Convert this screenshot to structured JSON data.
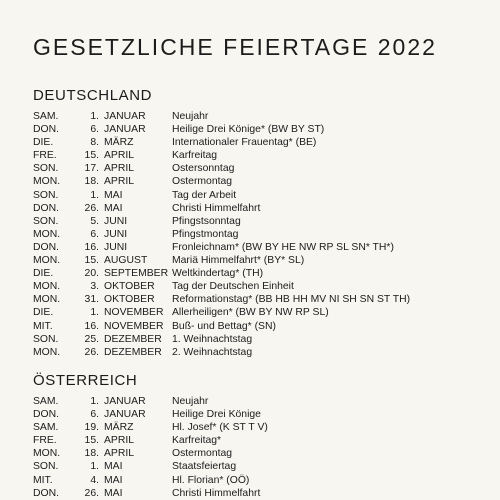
{
  "title": "GESETZLICHE FEIERTAGE 2022",
  "sections": [
    {
      "heading": "DEUTSCHLAND",
      "rows": [
        {
          "day": "SAM.",
          "num": "1.",
          "month": "JANUAR",
          "name": "Neujahr"
        },
        {
          "day": "DON.",
          "num": "6.",
          "month": "JANUAR",
          "name": "Heilige Drei Könige* (BW BY ST)"
        },
        {
          "day": "DIE.",
          "num": "8.",
          "month": "MÄRZ",
          "name": "Internationaler Frauentag* (BE)"
        },
        {
          "day": "FRE.",
          "num": "15.",
          "month": "APRIL",
          "name": "Karfreitag"
        },
        {
          "day": "SON.",
          "num": "17.",
          "month": "APRIL",
          "name": "Ostersonntag"
        },
        {
          "day": "MON.",
          "num": "18.",
          "month": "APRIL",
          "name": "Ostermontag"
        },
        {
          "day": "SON.",
          "num": "1.",
          "month": "MAI",
          "name": "Tag der Arbeit"
        },
        {
          "day": "DON.",
          "num": "26.",
          "month": "MAI",
          "name": "Christi Himmelfahrt"
        },
        {
          "day": "SON.",
          "num": "5.",
          "month": "JUNI",
          "name": "Pfingstsonntag"
        },
        {
          "day": "MON.",
          "num": "6.",
          "month": "JUNI",
          "name": "Pfingstmontag"
        },
        {
          "day": "DON.",
          "num": "16.",
          "month": "JUNI",
          "name": "Fronleichnam* (BW BY HE NW RP SL SN* TH*)"
        },
        {
          "day": "MON.",
          "num": "15.",
          "month": "AUGUST",
          "name": "Mariä Himmelfahrt* (BY* SL)"
        },
        {
          "day": "DIE.",
          "num": "20.",
          "month": "SEPTEMBER",
          "name": "Weltkindertag* (TH)"
        },
        {
          "day": "MON.",
          "num": "3.",
          "month": "OKTOBER",
          "name": "Tag der Deutschen Einheit"
        },
        {
          "day": "MON.",
          "num": "31.",
          "month": "OKTOBER",
          "name": "Reformationstag* (BB HB HH MV NI SH SN ST TH)"
        },
        {
          "day": "DIE.",
          "num": "1.",
          "month": "NOVEMBER",
          "name": "Allerheiligen* (BW BY NW RP SL)"
        },
        {
          "day": "MIT.",
          "num": "16.",
          "month": "NOVEMBER",
          "name": "Buß- und Bettag* (SN)"
        },
        {
          "day": "SON.",
          "num": "25.",
          "month": "DEZEMBER",
          "name": "1. Weihnachtstag"
        },
        {
          "day": "MON.",
          "num": "26.",
          "month": "DEZEMBER",
          "name": "2. Weihnachtstag"
        }
      ]
    },
    {
      "heading": "ÖSTERREICH",
      "rows": [
        {
          "day": "SAM.",
          "num": "1.",
          "month": "JANUAR",
          "name": "Neujahr"
        },
        {
          "day": "DON.",
          "num": "6.",
          "month": "JANUAR",
          "name": "Heilige Drei Könige"
        },
        {
          "day": "SAM.",
          "num": "19.",
          "month": "MÄRZ",
          "name": "Hl. Josef* (K ST T V)"
        },
        {
          "day": "FRE.",
          "num": "15.",
          "month": "APRIL",
          "name": "Karfreitag*"
        },
        {
          "day": "MON.",
          "num": "18.",
          "month": "APRIL",
          "name": "Ostermontag"
        },
        {
          "day": "SON.",
          "num": "1.",
          "month": "MAI",
          "name": "Staatsfeiertag"
        },
        {
          "day": "MIT.",
          "num": "4.",
          "month": "MAI",
          "name": "Hl. Florian* (OÖ)"
        },
        {
          "day": "DON.",
          "num": "26.",
          "month": "MAI",
          "name": "Christi Himmelfahrt"
        }
      ]
    }
  ]
}
